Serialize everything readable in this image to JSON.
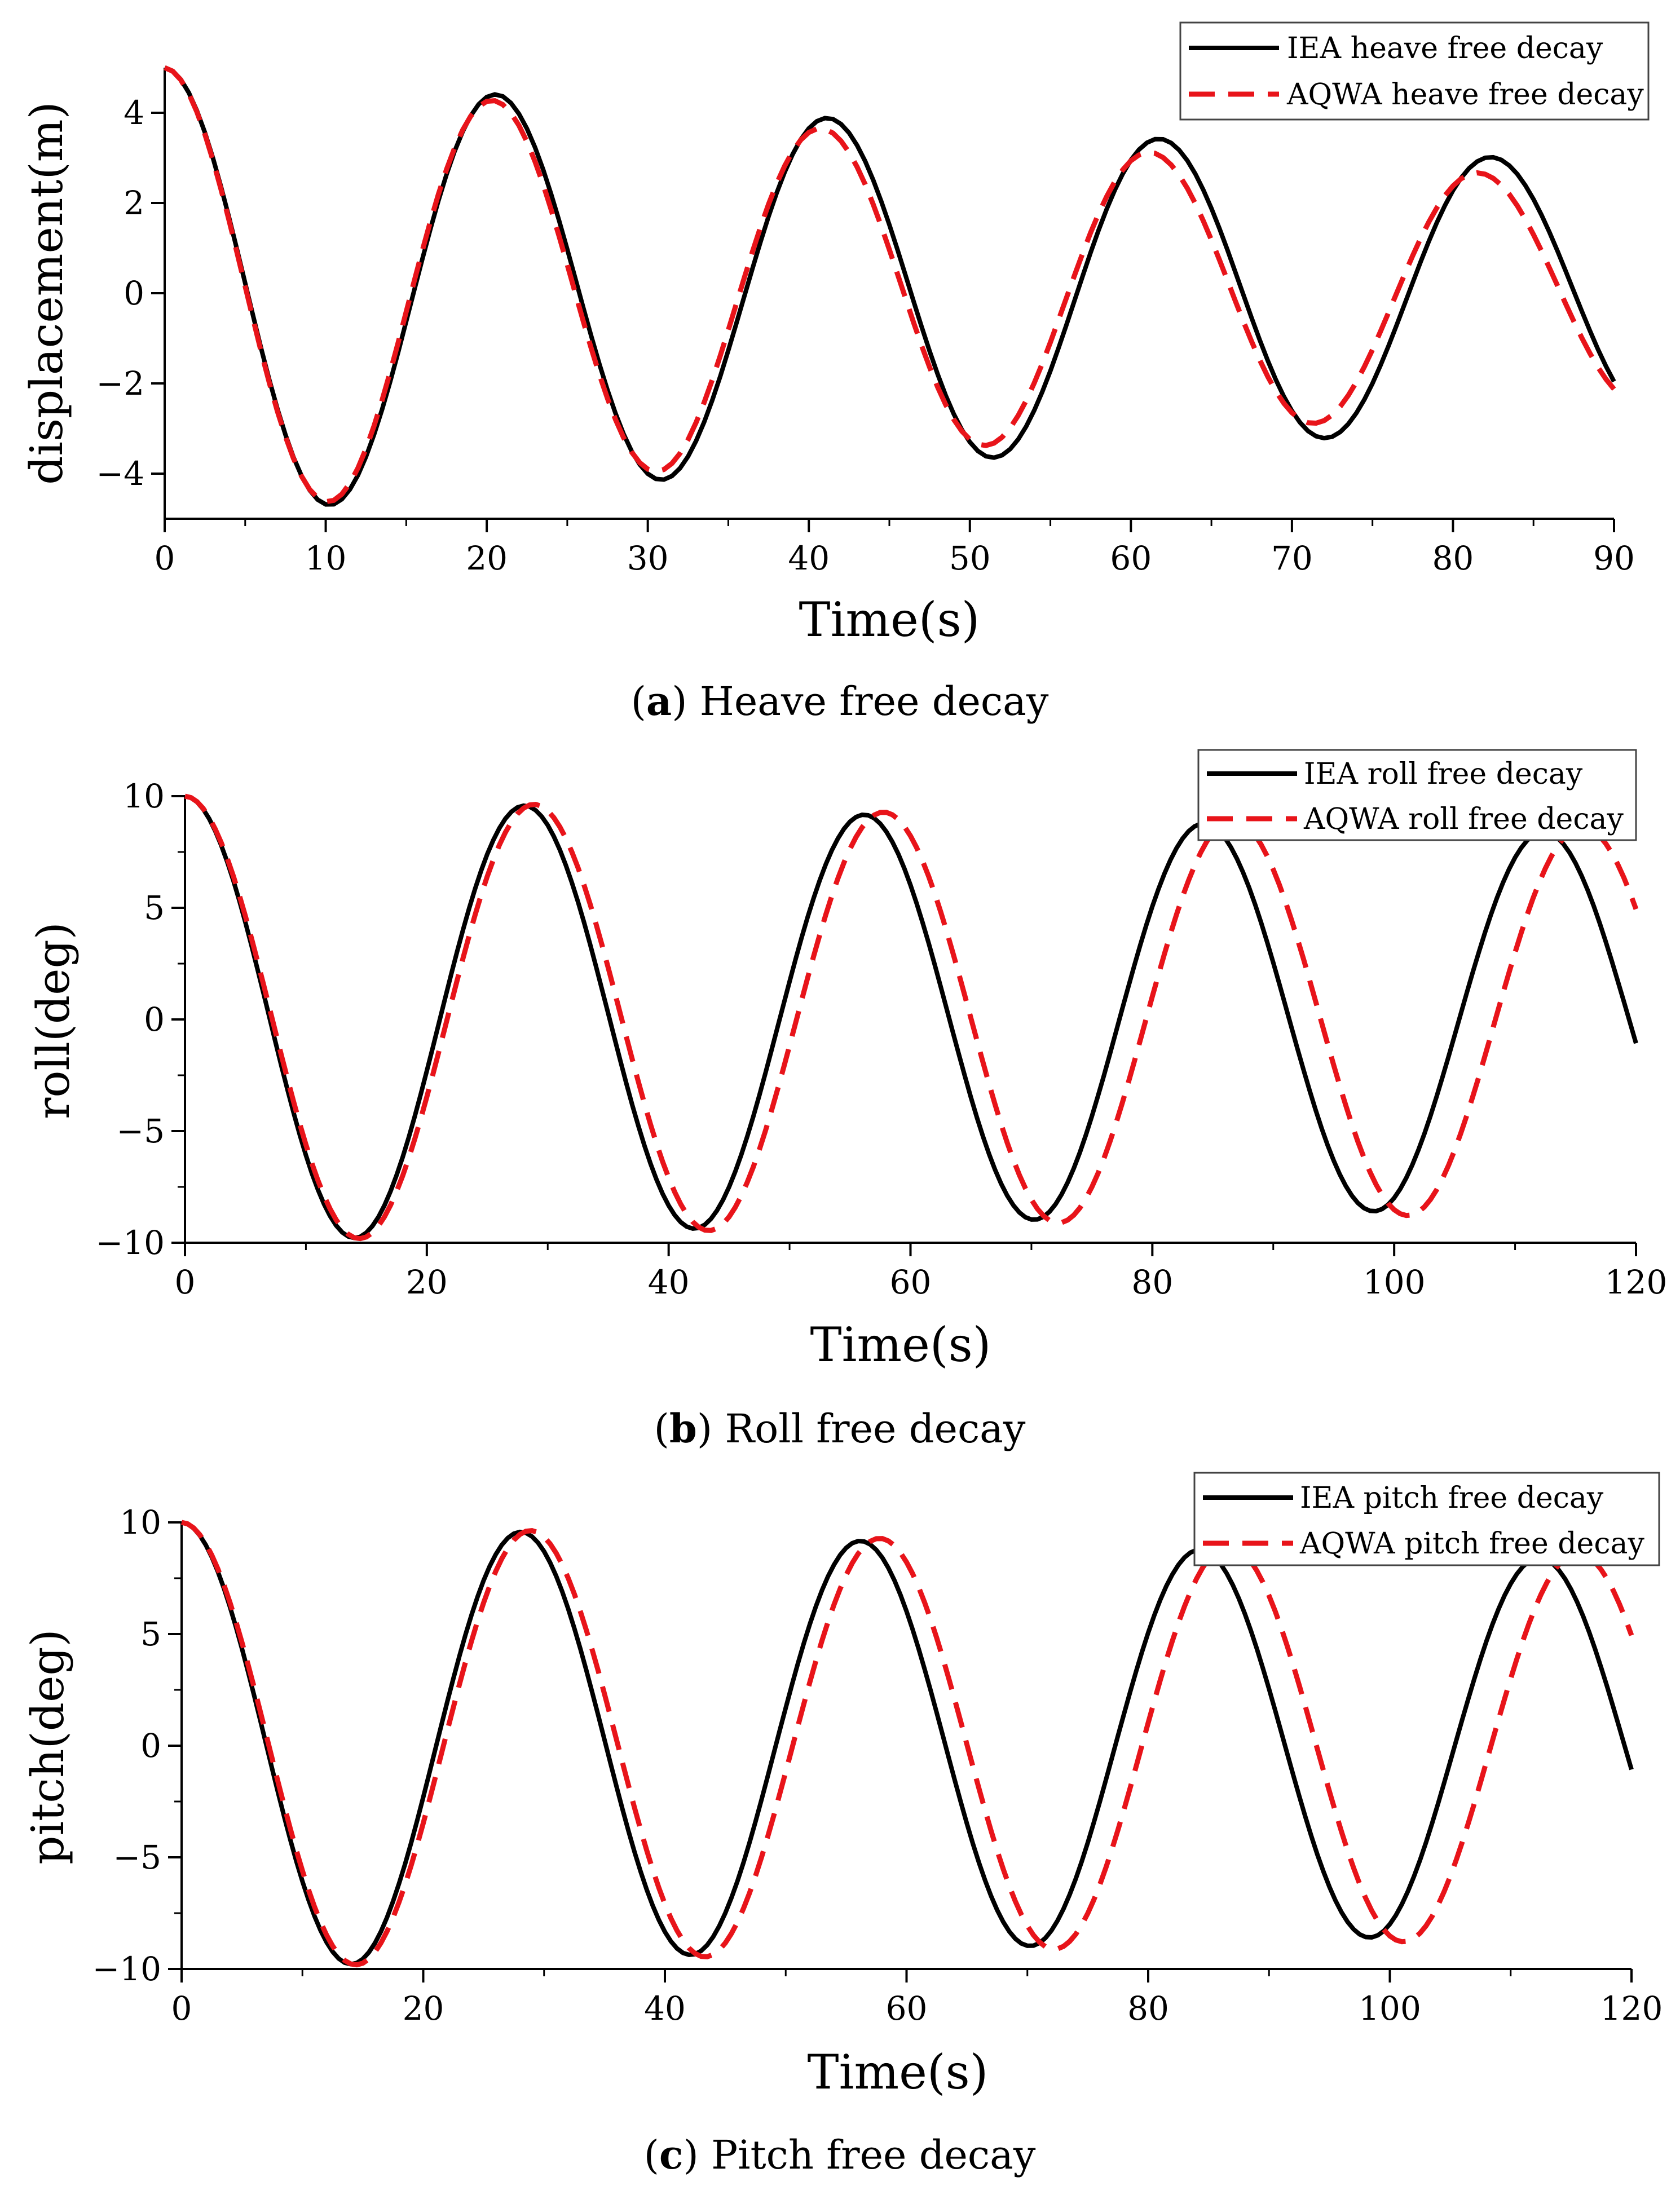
{
  "figure": {
    "panels": [
      {
        "caption_letter": "a",
        "caption_text": "Heave free decay"
      },
      {
        "caption_letter": "b",
        "caption_text": "Roll free decay"
      },
      {
        "caption_letter": "c",
        "caption_text": "Pitch free decay"
      }
    ]
  },
  "colors": {
    "iea": "#000000",
    "aqwa": "#e8141a",
    "axis": "#000000",
    "background": "#ffffff"
  },
  "chart_data": [
    {
      "type": "line",
      "title": "",
      "xlabel": "Time(s)",
      "ylabel": "displacement(m)",
      "xlim": [
        0,
        90
      ],
      "ylim": [
        -5,
        5
      ],
      "xticks": [
        0,
        10,
        20,
        30,
        40,
        50,
        60,
        70,
        80,
        90
      ],
      "xtick_labels": [
        "0",
        "10",
        "20",
        "30",
        "40",
        "50",
        "60",
        "70",
        "80",
        "90"
      ],
      "yticks": [
        -4,
        -2,
        0,
        2,
        4
      ],
      "ytick_labels": [
        "−4",
        "−2",
        "0",
        "2",
        "4"
      ],
      "legend_position": "top-right",
      "series": [
        {
          "name": "IEA heave free decay",
          "style": "solid",
          "color": "#000000",
          "initial": 5.0,
          "period": 20.6,
          "decay": 0.0201,
          "points": 181
        },
        {
          "name": "AQWA heave free decay",
          "style": "dashed",
          "color": "#e8141a",
          "initial": 5.0,
          "period": 20.4,
          "decay": 0.025,
          "points": 181
        }
      ]
    },
    {
      "type": "line",
      "title": "",
      "xlabel": "Time(s)",
      "ylabel": "roll(deg)",
      "xlim": [
        0,
        120
      ],
      "ylim": [
        -10,
        10
      ],
      "xticks": [
        0,
        20,
        40,
        60,
        80,
        100,
        120
      ],
      "xtick_labels": [
        "0",
        "20",
        "40",
        "60",
        "80",
        "100",
        "120"
      ],
      "yticks": [
        -10,
        -5,
        0,
        5,
        10
      ],
      "ytick_labels": [
        "−10",
        "−5",
        "0",
        "5",
        "10"
      ],
      "legend_position": "top-right",
      "series": [
        {
          "name": "IEA roll free decay",
          "style": "solid",
          "color": "#000000",
          "initial": 10.0,
          "period": 28.1,
          "decay": 0.0069,
          "points": 241
        },
        {
          "name": "AQWA roll free decay",
          "style": "dashed",
          "color": "#e8141a",
          "initial": 10.0,
          "period": 28.9,
          "decay": 0.0059,
          "points": 241
        }
      ]
    },
    {
      "type": "line",
      "title": "",
      "xlabel": "Time(s)",
      "ylabel": "pitch(deg)",
      "xlim": [
        0,
        120
      ],
      "ylim": [
        -10,
        10
      ],
      "xticks": [
        0,
        20,
        40,
        60,
        80,
        100,
        120
      ],
      "xtick_labels": [
        "0",
        "20",
        "40",
        "60",
        "80",
        "100",
        "120"
      ],
      "yticks": [
        -10,
        -5,
        0,
        5,
        10
      ],
      "ytick_labels": [
        "−10",
        "−5",
        "0",
        "5",
        "10"
      ],
      "legend_position": "top-right",
      "series": [
        {
          "name": "IEA pitch free decay",
          "style": "solid",
          "color": "#000000",
          "initial": 10.0,
          "period": 28.1,
          "decay": 0.0069,
          "points": 241
        },
        {
          "name": "AQWA pitch free decay",
          "style": "dashed",
          "color": "#e8141a",
          "initial": 10.0,
          "period": 28.9,
          "decay": 0.0059,
          "points": 241
        }
      ]
    }
  ]
}
